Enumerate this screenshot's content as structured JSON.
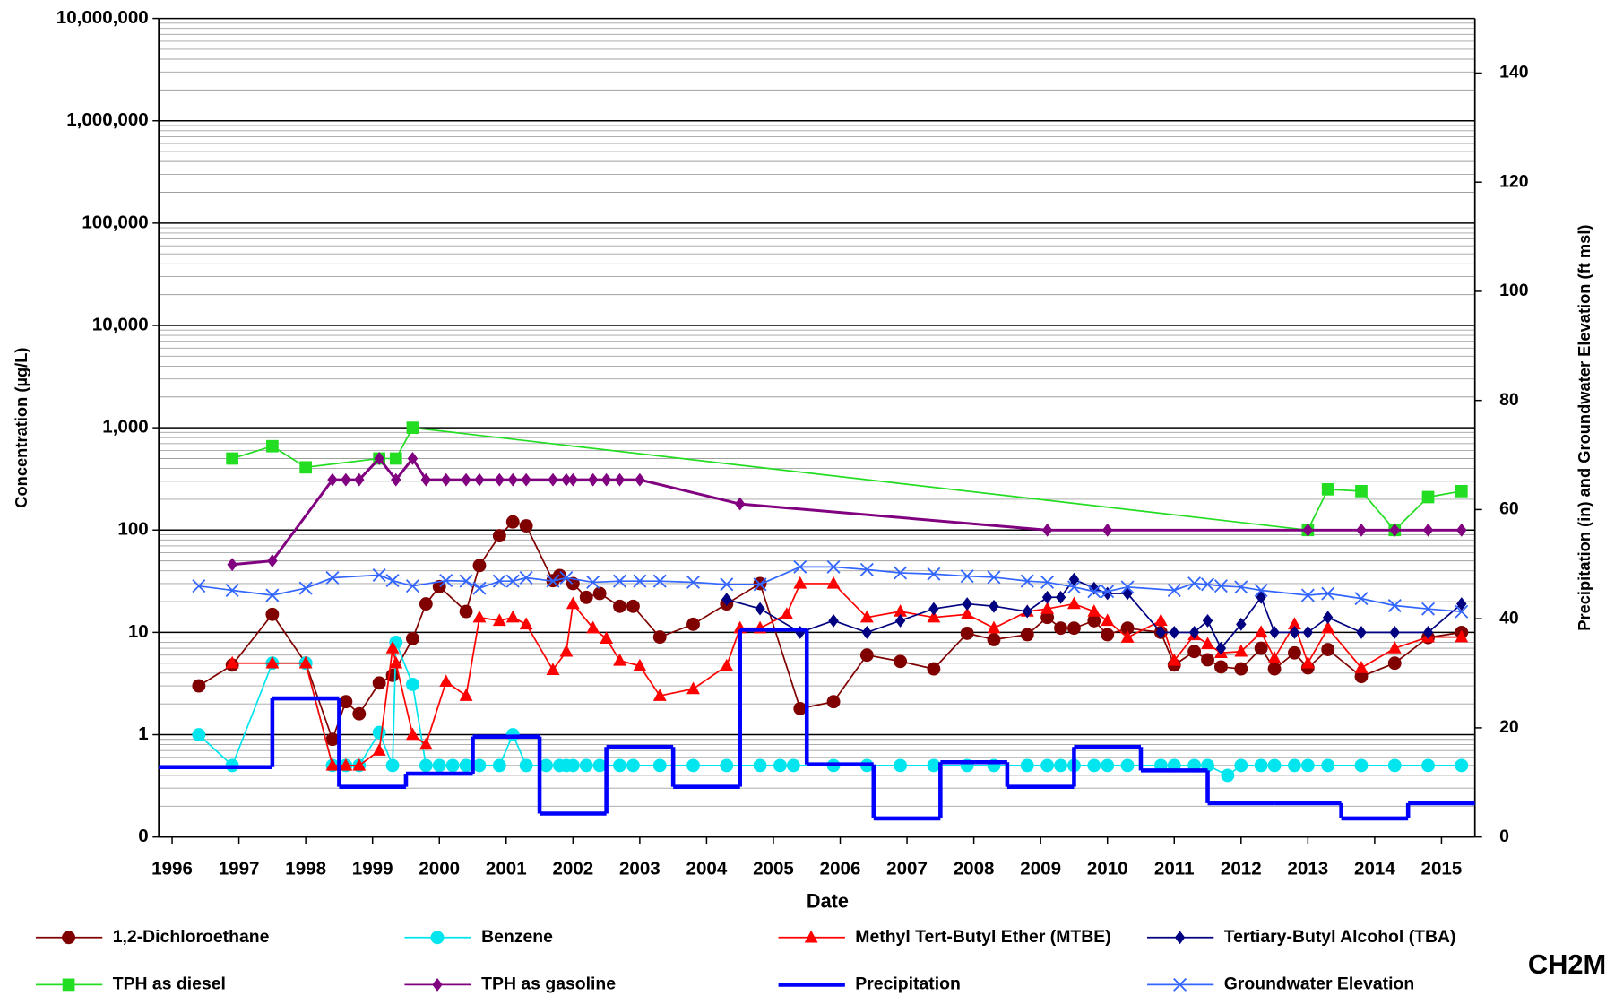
{
  "chart_data": {
    "type": "line",
    "xlabel": "Date",
    "ylabel": "Concentration (µg/L)",
    "y2label": "Precipitation (in) and Groundwater Elevation (ft msl)",
    "logo": "CH2M",
    "xlim": [
      1995.8,
      2015.5
    ],
    "xticks": [
      1996,
      1997,
      1998,
      1999,
      2000,
      2001,
      2002,
      2003,
      2004,
      2005,
      2006,
      2007,
      2008,
      2009,
      2010,
      2011,
      2012,
      2013,
      2014,
      2015
    ],
    "yscale": "log",
    "ylim": [
      0.1,
      10000000
    ],
    "yticks": [
      {
        "value": 0.1,
        "label": "0"
      },
      1,
      10,
      100,
      {
        "value": 1000,
        "label": "1,000"
      },
      {
        "value": 10000,
        "label": "10,000"
      },
      {
        "value": 100000,
        "label": "100,000"
      },
      {
        "value": 1000000,
        "label": "1,000,000"
      },
      {
        "value": 10000000,
        "label": "10,000,000"
      }
    ],
    "grid": true,
    "minor_grid": true,
    "y2lim": [
      0,
      150
    ],
    "y2ticks": [
      0,
      20,
      40,
      60,
      80,
      100,
      120,
      140
    ],
    "legend": "bottom",
    "series": [
      {
        "name": "1,2-Dichloroethane",
        "color": "#800000",
        "marker": "circle",
        "x": [
          1996.4,
          1996.9,
          1997.5,
          1998.0,
          1998.4,
          1998.6,
          1998.8,
          1999.1,
          1999.3,
          1999.6,
          1999.8,
          2000.0,
          2000.4,
          2000.6,
          2000.9,
          2001.1,
          2001.3,
          2001.7,
          2001.8,
          2002.0,
          2002.2,
          2002.4,
          2002.7,
          2002.9,
          2003.3,
          2003.8,
          2004.3,
          2004.8,
          2005.4,
          2005.9,
          2006.4,
          2006.9,
          2007.4,
          2007.9,
          2008.3,
          2008.8,
          2009.1,
          2009.3,
          2009.5,
          2009.8,
          2010.0,
          2010.3,
          2010.8,
          2011.0,
          2011.3,
          2011.5,
          2011.7,
          2012.0,
          2012.3,
          2012.5,
          2012.8,
          2013.0,
          2013.3,
          2013.8,
          2014.3,
          2014.8,
          2015.3
        ],
        "values": [
          3,
          4.8,
          15,
          5,
          0.9,
          2.1,
          1.6,
          3.2,
          3.8,
          8.7,
          19,
          28,
          16,
          45,
          88,
          120,
          110,
          32,
          36,
          30,
          22,
          24,
          18,
          18,
          9,
          12,
          19,
          30,
          1.8,
          2.1,
          6,
          5.2,
          4.4,
          9.8,
          8.5,
          9.5,
          14,
          11,
          11,
          13,
          9.5,
          11,
          10,
          4.8,
          6.5,
          5.4,
          4.6,
          4.4,
          7,
          4.4,
          6.3,
          4.5,
          6.8,
          3.7,
          5,
          8.9,
          10
        ]
      },
      {
        "name": "Benzene",
        "color": "#00e5ee",
        "marker": "circle",
        "x": [
          1996.4,
          1996.9,
          1997.5,
          1998.0,
          1998.4,
          1998.6,
          1998.8,
          1999.1,
          1999.3,
          1999.35,
          1999.6,
          1999.8,
          2000.0,
          2000.2,
          2000.4,
          2000.6,
          2000.9,
          2001.1,
          2001.3,
          2001.6,
          2001.8,
          2001.9,
          2002.0,
          2002.2,
          2002.4,
          2002.7,
          2002.9,
          2003.3,
          2003.8,
          2004.3,
          2004.8,
          2005.1,
          2005.3,
          2005.9,
          2006.4,
          2006.9,
          2007.4,
          2007.9,
          2008.3,
          2008.8,
          2009.1,
          2009.3,
          2009.5,
          2009.8,
          2010.0,
          2010.3,
          2010.8,
          2011.0,
          2011.3,
          2011.5,
          2011.8,
          2012.0,
          2012.3,
          2012.5,
          2012.8,
          2013.0,
          2013.3,
          2013.8,
          2014.3,
          2014.8,
          2015.3
        ],
        "values": [
          1,
          0.5,
          5,
          5,
          0.5,
          0.5,
          0.5,
          1.05,
          0.5,
          8,
          3.1,
          0.5,
          0.5,
          0.5,
          0.5,
          0.5,
          0.5,
          1,
          0.5,
          0.5,
          0.5,
          0.5,
          0.5,
          0.5,
          0.5,
          0.5,
          0.5,
          0.5,
          0.5,
          0.5,
          0.5,
          0.5,
          0.5,
          0.5,
          0.5,
          0.5,
          0.5,
          0.5,
          0.5,
          0.5,
          0.5,
          0.5,
          0.5,
          0.5,
          0.5,
          0.5,
          0.5,
          0.5,
          0.5,
          0.5,
          0.4,
          0.5,
          0.5,
          0.5,
          0.5,
          0.5,
          0.5,
          0.5,
          0.5,
          0.5,
          0.5
        ]
      },
      {
        "name": "Methyl Tert-Butyl Ether (MTBE)",
        "color": "#ff0000",
        "marker": "triangle",
        "x": [
          1996.9,
          1997.5,
          1998.0,
          1998.4,
          1998.6,
          1998.8,
          1999.1,
          1999.3,
          1999.35,
          1999.6,
          1999.8,
          2000.1,
          2000.4,
          2000.6,
          2000.9,
          2001.1,
          2001.3,
          2001.7,
          2001.9,
          2002.0,
          2002.3,
          2002.5,
          2002.7,
          2003.0,
          2003.3,
          2003.8,
          2004.3,
          2004.5,
          2004.8,
          2005.2,
          2005.4,
          2005.9,
          2006.4,
          2006.9,
          2007.4,
          2007.9,
          2008.3,
          2008.8,
          2009.1,
          2009.5,
          2009.8,
          2010.0,
          2010.3,
          2010.8,
          2011.0,
          2011.3,
          2011.5,
          2011.7,
          2012.0,
          2012.3,
          2012.5,
          2012.8,
          2013.0,
          2013.3,
          2013.8,
          2014.3,
          2014.8,
          2015.3
        ],
        "values": [
          5,
          5,
          5,
          0.5,
          0.5,
          0.5,
          0.7,
          7,
          5,
          1,
          0.8,
          3.3,
          2.4,
          14,
          13,
          14,
          12,
          4.3,
          6.5,
          19,
          11,
          8.7,
          5.3,
          4.7,
          2.4,
          2.8,
          4.7,
          11,
          11,
          15,
          30,
          30,
          14,
          16,
          14,
          15,
          11,
          16,
          17,
          19,
          16,
          13,
          8.9,
          13,
          5.3,
          9.4,
          7.7,
          6.3,
          6.5,
          10,
          5.6,
          12,
          5,
          11,
          4.5,
          7,
          9,
          9
        ]
      },
      {
        "name": "Tertiary-Butyl Alcohol (TBA)",
        "color": "#000080",
        "marker": "diamond",
        "x": [
          2004.3,
          2004.8,
          2005.4,
          2005.9,
          2006.4,
          2006.9,
          2007.4,
          2007.9,
          2008.3,
          2008.8,
          2009.1,
          2009.3,
          2009.5,
          2009.8,
          2010.0,
          2010.3,
          2010.8,
          2011.0,
          2011.3,
          2011.5,
          2011.7,
          2012.0,
          2012.3,
          2012.5,
          2012.8,
          2013.0,
          2013.3,
          2013.8,
          2014.3,
          2014.8,
          2015.3
        ],
        "values": [
          21,
          17,
          10,
          13,
          10,
          13,
          17,
          19,
          18,
          16,
          22,
          22,
          33,
          27,
          24,
          24,
          10,
          10,
          10,
          13,
          7,
          12,
          22,
          10,
          10,
          10,
          14,
          10,
          10,
          10,
          19
        ]
      },
      {
        "name": "TPH as diesel",
        "color": "#22dd22",
        "marker": "square",
        "x": [
          1996.9,
          1997.5,
          1998.0,
          1999.1,
          1999.35,
          1999.6,
          2013.0,
          2013.3,
          2013.8,
          2014.3,
          2014.8,
          2015.3
        ],
        "values": [
          500,
          660,
          410,
          500,
          500,
          1000,
          100,
          250,
          240,
          100,
          210,
          240
        ]
      },
      {
        "name": "TPH as gasoline",
        "color": "#800080",
        "marker": "diamond",
        "x": [
          1996.9,
          1997.5,
          1998.4,
          1998.6,
          1998.8,
          1999.1,
          1999.35,
          1999.6,
          1999.8,
          2000.1,
          2000.4,
          2000.6,
          2000.9,
          2001.1,
          2001.3,
          2001.7,
          2001.9,
          2002.0,
          2002.3,
          2002.5,
          2002.7,
          2003.0,
          2004.5,
          2009.1,
          2010.0,
          2013.0,
          2013.8,
          2014.3,
          2014.8,
          2015.3
        ],
        "values": [
          46,
          50,
          310,
          310,
          310,
          500,
          310,
          500,
          310,
          310,
          310,
          310,
          310,
          310,
          310,
          310,
          310,
          310,
          310,
          310,
          310,
          310,
          180,
          100,
          100,
          100,
          100,
          100,
          100,
          100
        ]
      },
      {
        "name": "Precipitation",
        "color": "#0000ff",
        "marker": "step",
        "axis": "y2",
        "x": [
          1996.5,
          1997.5,
          1998.5,
          1999.5,
          2000.5,
          2001.5,
          2002.5,
          2003.5,
          2004.5,
          2005.5,
          2006.5,
          2007.5,
          2008.5,
          2009.5,
          2010.5,
          2011.5,
          2012.5,
          2013.5,
          2014.5
        ],
        "values": [
          12.8,
          25.4,
          9.2,
          11.6,
          18.4,
          4.3,
          16.5,
          9.2,
          38,
          13.3,
          3.4,
          13.7,
          9.2,
          16.5,
          12.2,
          6.2,
          6.2,
          3.4,
          6.2
        ]
      },
      {
        "name": "Groundwater Elevation",
        "color": "#3366ff",
        "marker": "x",
        "axis": "y2",
        "x": [
          1996.4,
          1996.9,
          1997.5,
          1998.0,
          1998.4,
          1999.1,
          1999.3,
          1999.6,
          2000.1,
          2000.4,
          2000.6,
          2000.9,
          2001.1,
          2001.3,
          2001.7,
          2001.9,
          2002.3,
          2002.7,
          2003.0,
          2003.3,
          2003.8,
          2004.3,
          2004.8,
          2005.4,
          2005.9,
          2006.4,
          2006.9,
          2007.4,
          2007.9,
          2008.3,
          2008.8,
          2009.1,
          2009.5,
          2009.8,
          2010.0,
          2010.3,
          2011.0,
          2011.3,
          2011.5,
          2011.7,
          2012.0,
          2012.3,
          2013.0,
          2013.3,
          2013.8,
          2014.3,
          2014.8,
          2015.3
        ],
        "values": [
          46,
          45.2,
          44.3,
          45.6,
          47.5,
          48,
          47,
          46,
          47,
          46.9,
          45.6,
          46.9,
          46.9,
          47.5,
          46.9,
          47.5,
          46.7,
          46.9,
          46.9,
          46.9,
          46.7,
          46.3,
          46.3,
          49.5,
          49.5,
          49,
          48.4,
          48.2,
          47.8,
          47.6,
          46.9,
          46.7,
          45.8,
          45,
          45,
          45.8,
          45.2,
          46.5,
          46.3,
          46,
          45.8,
          45.2,
          44.3,
          44.6,
          43.7,
          42.4,
          41.8,
          41.3
        ]
      }
    ]
  }
}
